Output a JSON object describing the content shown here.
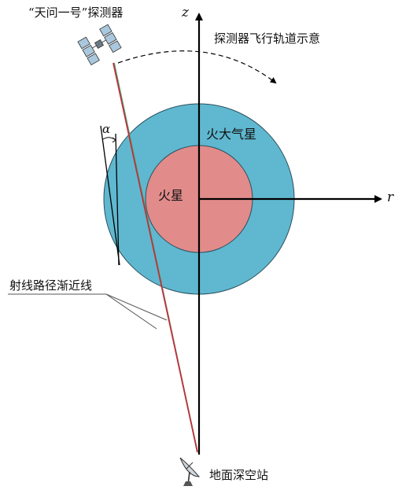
{
  "labels": {
    "probe": "“天问一号”探测器",
    "trajectory": "探测器飞行轨道示意",
    "mars_atmosphere": "火大气星",
    "mars": "火星",
    "ray_asymptote": "射线路径渐近线",
    "ground_station": "地面深空站"
  },
  "axes": {
    "z": "z",
    "r": "r"
  },
  "angle": {
    "symbol": "α"
  },
  "colors": {
    "atmosphere": "#5fb8cf",
    "planet": "#e18b8b",
    "ray_red": "#c2303a",
    "ray_green": "#3fae79",
    "axis": "#000000",
    "solar_panel": "#a9c7dd"
  },
  "icons": {
    "probe": "satellite-icon",
    "station": "satellite-dish-icon"
  }
}
